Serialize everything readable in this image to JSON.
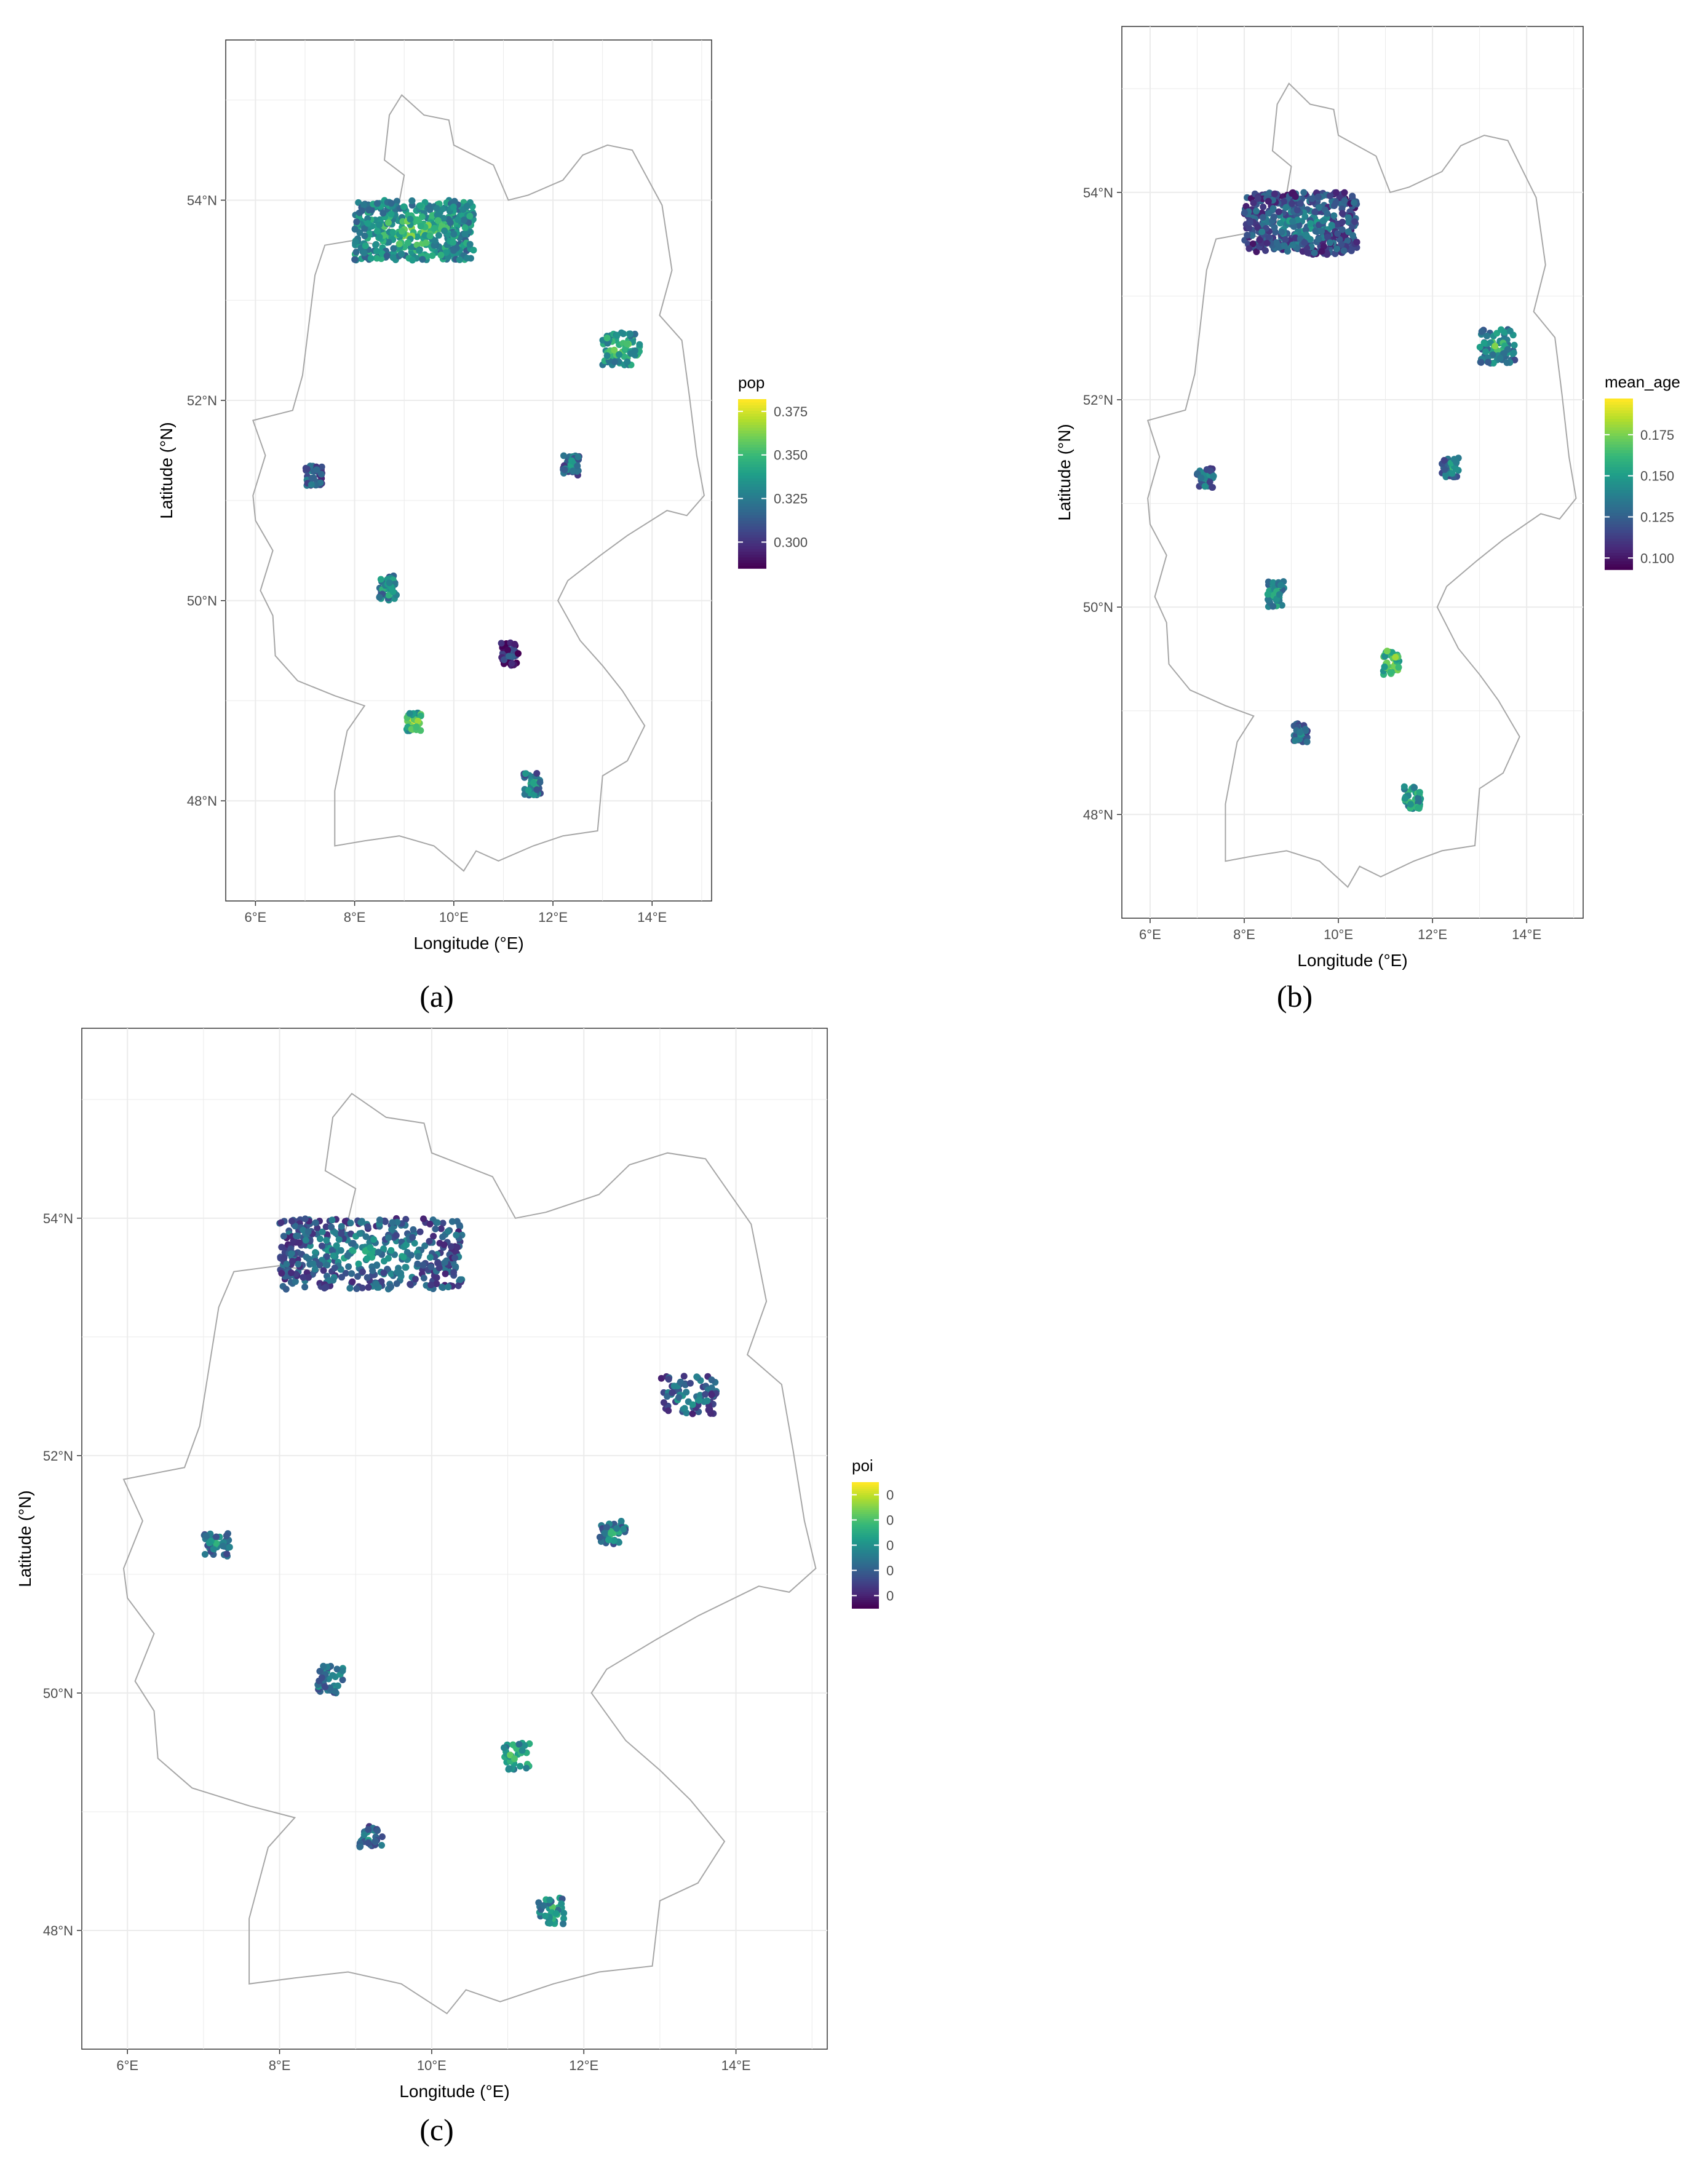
{
  "figure": {
    "colormap": [
      "#440154",
      "#482878",
      "#3e4989",
      "#31688e",
      "#26828e",
      "#1f9e89",
      "#35b779",
      "#6ece58",
      "#b5de2b",
      "#fde725"
    ],
    "grid": true,
    "panel_background": "#ffffff",
    "gridline_color": "#ebebeb",
    "outline_color": "#a6a6a6"
  },
  "chart_data": [
    {
      "type": "scatter",
      "caption": "(a)",
      "title": "",
      "xlabel": "Longitude (°E)",
      "ylabel": "Latitude (°N)",
      "xlim": [
        5.4,
        15.2
      ],
      "ylim": [
        47.0,
        55.6
      ],
      "x_ticks": [
        "6°E",
        "8°E",
        "10°E",
        "12°E",
        "14°E"
      ],
      "y_ticks": [
        "48°N",
        "50°N",
        "52°N",
        "54°N"
      ],
      "legend": {
        "title": "pop",
        "range": [
          0.285,
          0.382
        ],
        "ticks": [
          0.3,
          0.325,
          0.35,
          0.375
        ],
        "tick_labels": [
          "0.300",
          "0.325",
          "0.350",
          "0.375"
        ],
        "position": "right"
      },
      "clusters": [
        {
          "lon_min": 8.0,
          "lon_max": 10.4,
          "lat_min": 53.4,
          "lat_max": 54.0,
          "level": 0.55
        },
        {
          "lon_min": 13.0,
          "lon_max": 13.75,
          "lat_min": 52.35,
          "lat_max": 52.68,
          "level": 0.6
        },
        {
          "lon_min": 7.0,
          "lon_max": 7.35,
          "lat_min": 51.15,
          "lat_max": 51.35,
          "level": 0.35
        },
        {
          "lon_min": 12.2,
          "lon_max": 12.55,
          "lat_min": 51.25,
          "lat_max": 51.45,
          "level": 0.4
        },
        {
          "lon_min": 8.5,
          "lon_max": 8.85,
          "lat_min": 50.0,
          "lat_max": 50.25,
          "level": 0.5
        },
        {
          "lon_min": 10.95,
          "lon_max": 11.3,
          "lat_min": 49.35,
          "lat_max": 49.58,
          "level": 0.15
        },
        {
          "lon_min": 9.05,
          "lon_max": 9.35,
          "lat_min": 48.7,
          "lat_max": 48.88,
          "level": 0.7
        },
        {
          "lon_min": 11.4,
          "lon_max": 11.75,
          "lat_min": 48.05,
          "lat_max": 48.28,
          "level": 0.45
        }
      ]
    },
    {
      "type": "scatter",
      "caption": "(b)",
      "title": "",
      "xlabel": "Longitude (°E)",
      "ylabel": "Latitude (°N)",
      "xlim": [
        5.4,
        15.2
      ],
      "ylim": [
        47.0,
        55.6
      ],
      "x_ticks": [
        "6°E",
        "8°E",
        "10°E",
        "12°E",
        "14°E"
      ],
      "y_ticks": [
        "48°N",
        "50°N",
        "52°N",
        "54°N"
      ],
      "legend": {
        "title": "mean_age",
        "range": [
          0.093,
          0.197
        ],
        "ticks": [
          0.1,
          0.125,
          0.15,
          0.175
        ],
        "tick_labels": [
          "0.100",
          "0.125",
          "0.150",
          "0.175"
        ],
        "position": "right"
      },
      "clusters": [
        {
          "lon_min": 8.0,
          "lon_max": 10.4,
          "lat_min": 53.4,
          "lat_max": 54.0,
          "level": 0.3
        },
        {
          "lon_min": 13.0,
          "lon_max": 13.75,
          "lat_min": 52.35,
          "lat_max": 52.68,
          "level": 0.5
        },
        {
          "lon_min": 7.0,
          "lon_max": 7.35,
          "lat_min": 51.15,
          "lat_max": 51.35,
          "level": 0.4
        },
        {
          "lon_min": 12.2,
          "lon_max": 12.55,
          "lat_min": 51.25,
          "lat_max": 51.45,
          "level": 0.4
        },
        {
          "lon_min": 8.5,
          "lon_max": 8.85,
          "lat_min": 50.0,
          "lat_max": 50.25,
          "level": 0.55
        },
        {
          "lon_min": 10.95,
          "lon_max": 11.3,
          "lat_min": 49.35,
          "lat_max": 49.58,
          "level": 0.75
        },
        {
          "lon_min": 9.05,
          "lon_max": 9.35,
          "lat_min": 48.7,
          "lat_max": 48.88,
          "level": 0.35
        },
        {
          "lon_min": 11.4,
          "lon_max": 11.75,
          "lat_min": 48.05,
          "lat_max": 48.28,
          "level": 0.6
        }
      ]
    },
    {
      "type": "scatter",
      "caption": "(c)",
      "title": "",
      "xlabel": "Longitude (°E)",
      "ylabel": "Latitude (°N)",
      "xlim": [
        5.4,
        15.2
      ],
      "ylim": [
        47.0,
        55.6
      ],
      "x_ticks": [
        "6°E",
        "8°E",
        "10°E",
        "12°E",
        "14°E"
      ],
      "y_ticks": [
        "48°N",
        "50°N",
        "52°N",
        "54°N"
      ],
      "legend": {
        "title": "poi",
        "range": [
          0.0,
          1.0
        ],
        "ticks": [
          0.1,
          0.3,
          0.5,
          0.7,
          0.9
        ],
        "tick_labels": [
          "0",
          "0",
          "0",
          "0",
          "0"
        ],
        "position": "right"
      },
      "clusters": [
        {
          "lon_min": 8.0,
          "lon_max": 10.4,
          "lat_min": 53.4,
          "lat_max": 54.0,
          "level": 0.35
        },
        {
          "lon_min": 13.0,
          "lon_max": 13.75,
          "lat_min": 52.35,
          "lat_max": 52.68,
          "level": 0.35
        },
        {
          "lon_min": 7.0,
          "lon_max": 7.35,
          "lat_min": 51.15,
          "lat_max": 51.35,
          "level": 0.4
        },
        {
          "lon_min": 12.2,
          "lon_max": 12.55,
          "lat_min": 51.25,
          "lat_max": 51.45,
          "level": 0.45
        },
        {
          "lon_min": 8.5,
          "lon_max": 8.85,
          "lat_min": 50.0,
          "lat_max": 50.25,
          "level": 0.45
        },
        {
          "lon_min": 10.95,
          "lon_max": 11.3,
          "lat_min": 49.35,
          "lat_max": 49.58,
          "level": 0.6
        },
        {
          "lon_min": 9.05,
          "lon_max": 9.35,
          "lat_min": 48.7,
          "lat_max": 48.88,
          "level": 0.4
        },
        {
          "lon_min": 11.4,
          "lon_max": 11.75,
          "lat_min": 48.05,
          "lat_max": 48.28,
          "level": 0.5
        }
      ]
    }
  ]
}
